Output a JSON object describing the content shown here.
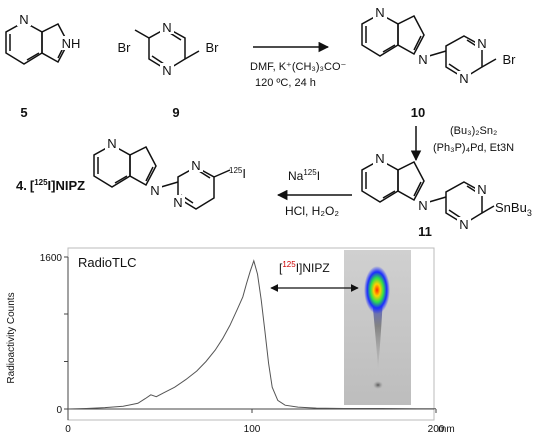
{
  "scheme": {
    "compound_5": {
      "number": "5",
      "atom_n_top": "N",
      "atom_nh": "NH"
    },
    "compound_9": {
      "number": "9",
      "atom_br_left": "Br",
      "atom_br_right": "Br",
      "atom_n": "N"
    },
    "compound_10": {
      "number": "10",
      "atom_br": "Br",
      "atom_n": "N"
    },
    "compound_11": {
      "number": "11",
      "substituent": "SnBu",
      "substituent_sub": "3",
      "atom_n": "N"
    },
    "compound_4": {
      "number": "4.",
      "name_open": "[",
      "name_sup": "125",
      "name_rest": "I]NIPZ",
      "iodine_sup": "125",
      "iodine": "I",
      "atom_n": "N"
    },
    "step1": {
      "line1": "DMF, K⁺(CH₃)₃CO⁻",
      "line2": "120 ºC, 24 h"
    },
    "step2": {
      "line1": "(Bu₃)₂Sn₂",
      "line2": "(Ph₃P)₄Pd, Et3N"
    },
    "step3": {
      "line1_pre": "Na",
      "line1_sup": "125",
      "line1_post": "I",
      "line2": "HCl, H₂O₂"
    }
  },
  "chart_data": {
    "type": "line",
    "title": "RadioTLC",
    "xlabel": "",
    "x_unit": "mm",
    "ylabel": "Radioactivity Counts",
    "xlim": [
      0,
      200
    ],
    "ylim": [
      0,
      1600
    ],
    "x_ticks": [
      0,
      100,
      200
    ],
    "y_ticks": [
      0,
      500,
      1000,
      1600
    ],
    "grid": false,
    "annotation": {
      "open": "[",
      "sup": "125",
      "rest": "I]NIPZ",
      "sup_color": "#cc0000"
    },
    "series": [
      {
        "x": [
          0,
          10,
          20,
          30,
          38,
          42,
          45,
          48,
          52,
          58,
          64,
          70,
          75,
          80,
          84,
          88,
          92,
          95,
          97,
          99,
          101,
          103,
          105,
          107,
          109,
          111,
          114,
          118,
          125,
          135,
          150,
          170,
          190,
          200
        ],
        "y": [
          0,
          5,
          15,
          30,
          60,
          110,
          150,
          130,
          170,
          230,
          310,
          400,
          500,
          620,
          740,
          880,
          1050,
          1180,
          1320,
          1450,
          1560,
          1420,
          1150,
          820,
          480,
          230,
          90,
          40,
          20,
          10,
          5,
          5,
          3,
          3
        ]
      }
    ]
  }
}
